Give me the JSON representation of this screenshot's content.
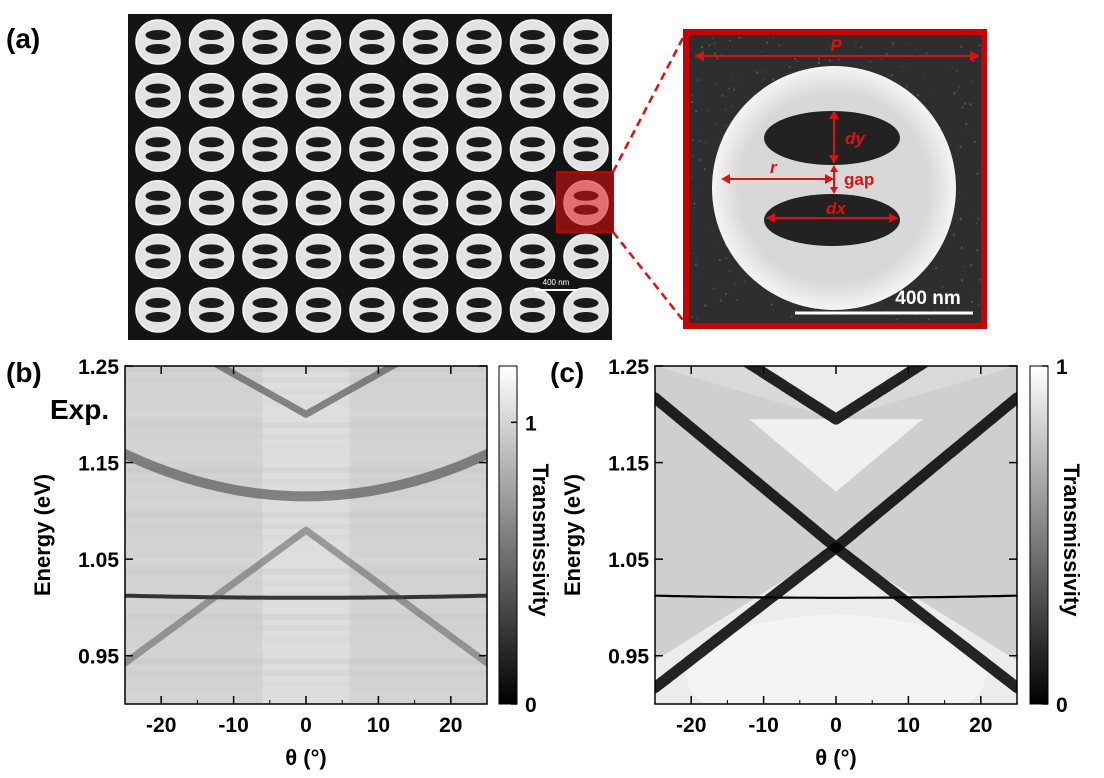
{
  "panel_labels": {
    "a": "(a)",
    "b": "(b)",
    "c": "(c)"
  },
  "panel_a": {
    "sem_scale_text": "400 nm",
    "zoom_scale_text": "400 nm",
    "annotations": {
      "P": "P",
      "dy": "dy",
      "r": "r",
      "gap": "gap",
      "dx": "dx"
    },
    "array_rows": 6,
    "array_cols": 9,
    "highlight_color": "#e01010"
  },
  "chart_data": [
    {
      "type": "heatmap",
      "panel": "b",
      "annotation": "Exp.",
      "xlabel": "θ (°)",
      "ylabel": "Energy  (eV)",
      "xlim": [
        -25,
        25
      ],
      "ylim": [
        0.9,
        1.25
      ],
      "xticks": [
        -20,
        -10,
        0,
        10,
        20
      ],
      "xtick_labels": [
        "-20",
        "-10",
        "0",
        "10",
        "20"
      ],
      "yticks": [
        0.95,
        1.05,
        1.15,
        1.25
      ],
      "ytick_labels": [
        "0.95",
        "1.05",
        "1.15",
        "1.25"
      ],
      "colorbar": {
        "label": "Transmissivity",
        "min": 0,
        "max": 1.2,
        "ticks": [
          0,
          1
        ],
        "tick_labels": [
          "0",
          "1"
        ]
      },
      "bands": [
        {
          "kind": "flat",
          "energy": 1.01
        },
        {
          "kind": "parabola",
          "e0": 1.115,
          "curv": 7e-05
        },
        {
          "kind": "cone_down",
          "apex": 1.08,
          "slope": 0.0055
        },
        {
          "kind": "cone_up",
          "apex": 1.2,
          "slope": 0.0042
        }
      ]
    },
    {
      "type": "heatmap",
      "panel": "c",
      "xlabel": "θ (°)",
      "ylabel": "Energy (eV)",
      "xlim": [
        -25,
        25
      ],
      "ylim": [
        0.9,
        1.25
      ],
      "xticks": [
        -20,
        -10,
        0,
        10,
        20
      ],
      "xtick_labels": [
        "-20",
        "-10",
        "0",
        "10",
        "20"
      ],
      "yticks": [
        0.95,
        1.05,
        1.15,
        1.25
      ],
      "ytick_labels": [
        "0.95",
        "1.05",
        "1.15",
        "1.25"
      ],
      "colorbar": {
        "label": "Transmissivity",
        "min": 0,
        "max": 1,
        "ticks": [
          0,
          1
        ],
        "tick_labels": [
          "0",
          "1"
        ]
      },
      "bands": [
        {
          "kind": "flat",
          "energy": 1.01
        },
        {
          "kind": "cone_down",
          "apex": 1.062,
          "slope": 0.0058
        },
        {
          "kind": "cone_up",
          "apex": 1.062,
          "slope": 0.0062
        },
        {
          "kind": "cone_up",
          "apex": 1.195,
          "slope": 0.0048
        }
      ]
    }
  ]
}
